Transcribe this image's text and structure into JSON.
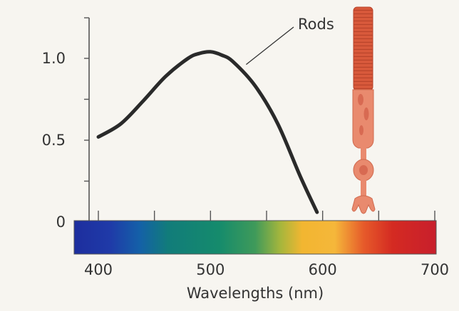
{
  "chart_data": {
    "type": "line",
    "title": "",
    "xlabel": "Wavelengths (nm)",
    "ylabel": "",
    "xlim": [
      400,
      700
    ],
    "ylim": [
      0,
      1.2
    ],
    "x_ticks": [
      400,
      500,
      600,
      700
    ],
    "y_ticks": [
      0,
      0.5,
      1.0
    ],
    "x_tick_labels": [
      "400",
      "500",
      "600",
      "700"
    ],
    "y_tick_labels": [
      "0",
      "0.5",
      "1.0"
    ],
    "series": [
      {
        "name": "Rods",
        "color": "#2a2a2a",
        "x": [
          400,
          420,
          440,
          460,
          480,
          490,
          500,
          510,
          520,
          540,
          560,
          580,
          595
        ],
        "y": [
          0.52,
          0.6,
          0.74,
          0.89,
          1.0,
          1.03,
          1.04,
          1.02,
          0.98,
          0.83,
          0.6,
          0.28,
          0.06
        ]
      }
    ],
    "annotations": [
      {
        "text": "Rods",
        "target_x": 535,
        "target_y": 0.98
      }
    ],
    "spectrum_bar": true
  },
  "colors": {
    "rod_cell": "#e87a5a",
    "rod_outer_segment": "#d9573a",
    "curve": "#2a2a2a"
  },
  "icons": [
    "rod-cell-illustration"
  ]
}
